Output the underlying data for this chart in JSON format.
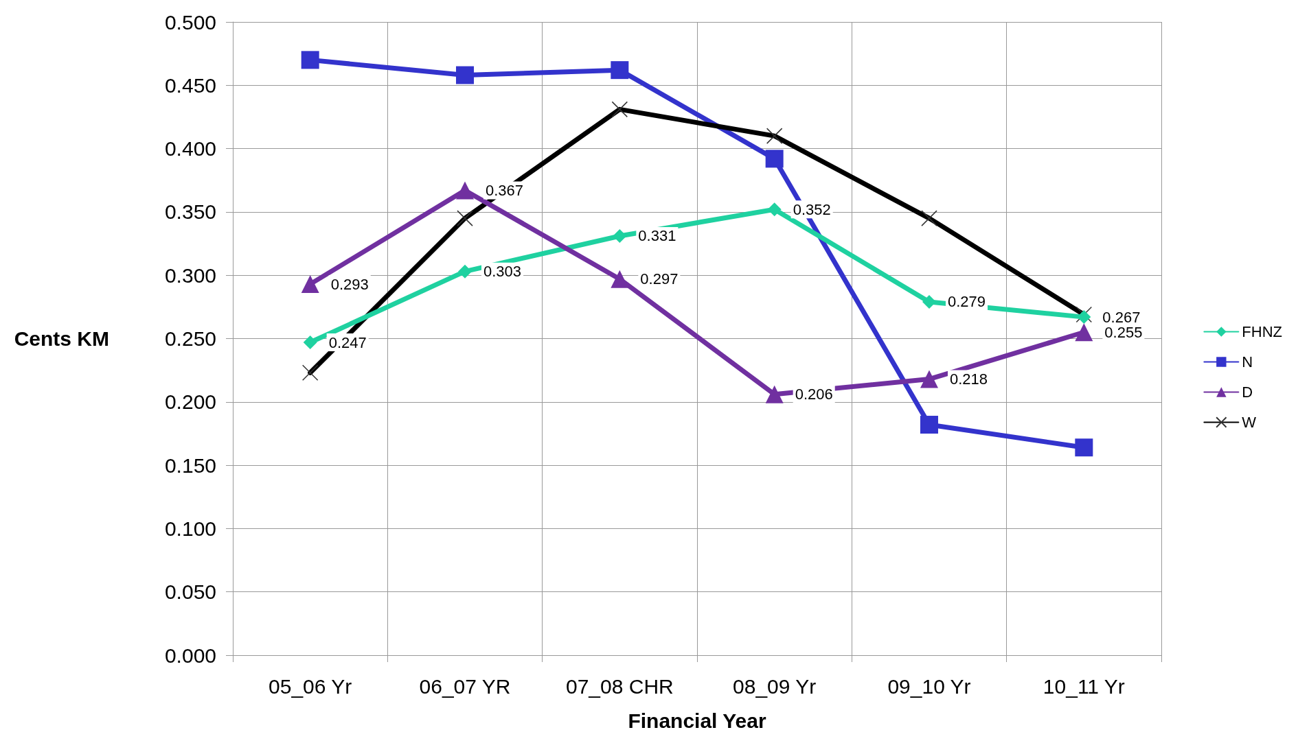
{
  "chart_data": {
    "type": "line",
    "xlabel": "Financial Year",
    "ylabel": "Cents KM",
    "categories": [
      "05_06 Yr",
      "06_07 YR",
      "07_08 CHR",
      "08_09 Yr",
      "09_10 Yr",
      "10_11 Yr"
    ],
    "series": [
      {
        "name": "FHNZ",
        "color": "#1fd1a0",
        "marker": "diamond",
        "values": [
          0.247,
          0.303,
          0.331,
          0.352,
          0.279,
          0.267
        ],
        "value_labels": [
          "0.247",
          "0.303",
          "0.331",
          "0.352",
          "0.279",
          "0.267"
        ]
      },
      {
        "name": "N",
        "color": "#3333cc",
        "marker": "square",
        "values": [
          0.47,
          0.458,
          0.462,
          0.392,
          0.182,
          0.164
        ]
      },
      {
        "name": "D",
        "color": "#7030a0",
        "marker": "triangle",
        "values": [
          0.293,
          0.367,
          0.297,
          0.206,
          0.218,
          0.255
        ],
        "value_labels": [
          "0.293",
          "0.367",
          "0.297",
          "0.206",
          "0.218",
          "0.255"
        ]
      },
      {
        "name": "W",
        "color": "#000000",
        "marker": "cross",
        "values": [
          0.223,
          0.345,
          0.431,
          0.41,
          0.345,
          0.269
        ]
      }
    ],
    "ylim": [
      0,
      0.5
    ],
    "yticks": [
      {
        "value": 0,
        "label": "0.000"
      },
      {
        "value": 0.05,
        "label": "0.050"
      },
      {
        "value": 0.1,
        "label": "0.100"
      },
      {
        "value": 0.15,
        "label": "0.150"
      },
      {
        "value": 0.2,
        "label": "0.200"
      },
      {
        "value": 0.25,
        "label": "0.250"
      },
      {
        "value": 0.3,
        "label": "0.300"
      },
      {
        "value": 0.35,
        "label": "0.350"
      },
      {
        "value": 0.4,
        "label": "0.400"
      },
      {
        "value": 0.45,
        "label": "0.450"
      },
      {
        "value": 0.5,
        "label": "0.500"
      }
    ],
    "grid": true,
    "legend": "right"
  }
}
